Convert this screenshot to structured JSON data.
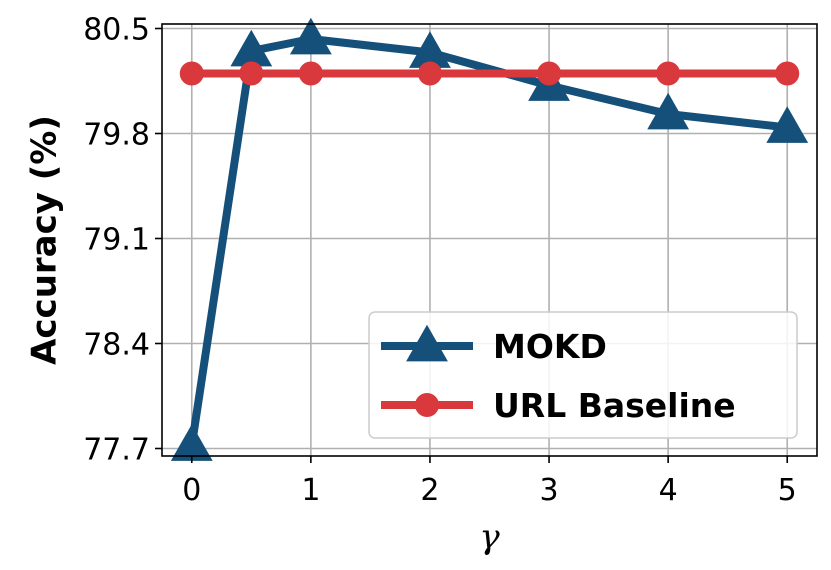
{
  "chart_data": {
    "type": "line",
    "x": [
      0,
      0.5,
      1,
      2,
      3,
      4,
      5
    ],
    "xticks": [
      "0",
      "1",
      "2",
      "3",
      "4",
      "5"
    ],
    "xtick_values": [
      0,
      1,
      2,
      3,
      4,
      5
    ],
    "yticks": [
      "77.7",
      "78.4",
      "79.1",
      "79.8",
      "80.5"
    ],
    "ytick_values": [
      77.7,
      78.4,
      79.1,
      79.8,
      80.5
    ],
    "xlim": [
      -0.25,
      5.25
    ],
    "ylim": [
      77.65,
      80.53
    ],
    "xlabel": "γ",
    "ylabel": "Accuracy (%)",
    "grid": true,
    "legend_position": "lower-right",
    "series": [
      {
        "name": "MOKD",
        "marker": "triangle",
        "color": "#15507a",
        "values": [
          77.72,
          80.35,
          80.43,
          80.34,
          80.12,
          79.93,
          79.84
        ]
      },
      {
        "name": "URL Baseline",
        "marker": "circle",
        "color": "#d9383d",
        "values": [
          80.2,
          80.2,
          80.2,
          80.2,
          80.2,
          80.2,
          80.2
        ]
      }
    ]
  }
}
